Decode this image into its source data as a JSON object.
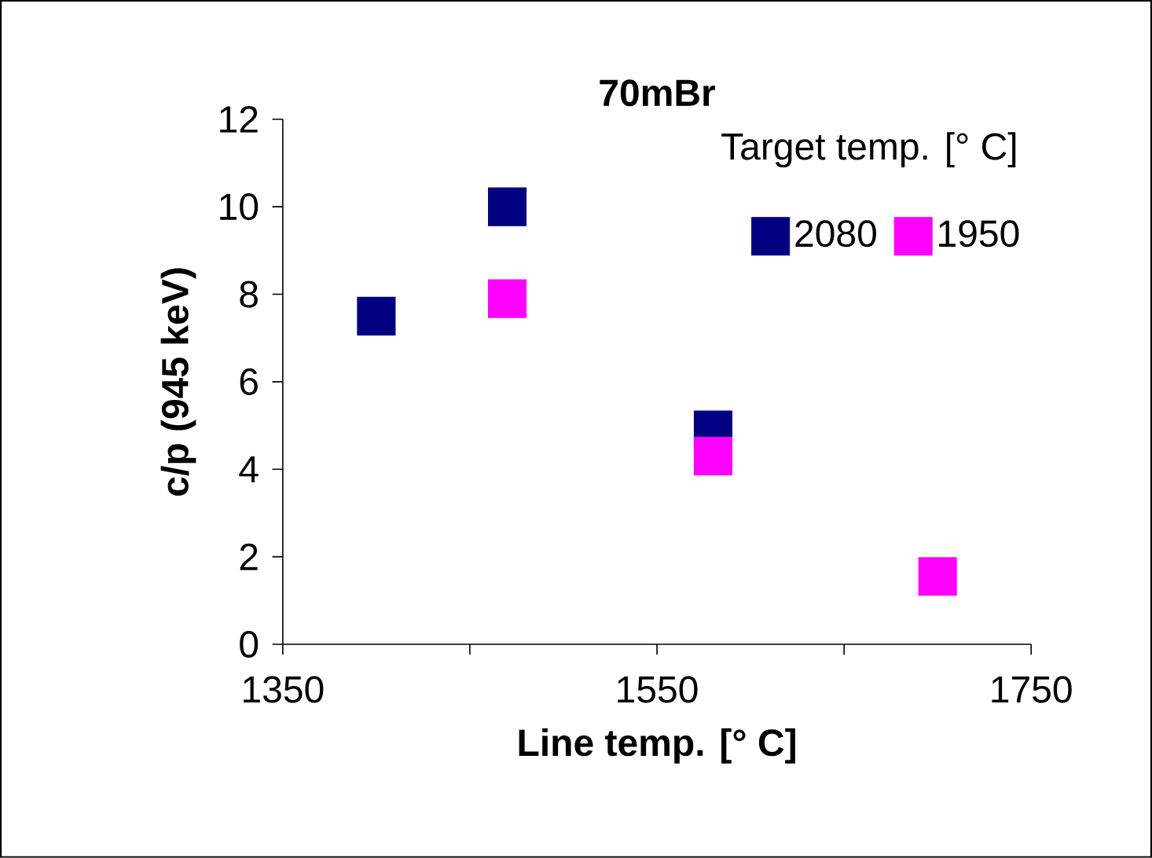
{
  "chart_data": {
    "type": "scatter",
    "title": "70mBr",
    "xlabel": "Line temp. [° C]",
    "ylabel": "c/p (945 keV)",
    "legend_title": "Target temp. [° C]",
    "legend": "top right",
    "marker": "square",
    "xlim": [
      1350,
      1750
    ],
    "xticks": [
      1350,
      {
        "value": 1450,
        "label": null
      },
      1550,
      {
        "value": 1650,
        "label": null
      },
      1750
    ],
    "ylim": [
      0,
      12
    ],
    "yticks": [
      0,
      2,
      4,
      6,
      8,
      10,
      12
    ],
    "series": [
      {
        "name": "2080",
        "color": "#000080",
        "x": [
          1400,
          1470,
          1580
        ],
        "values": [
          7.5,
          10.0,
          4.9
        ]
      },
      {
        "name": "1950",
        "color": "#ff00ff",
        "x": [
          1470,
          1580,
          1700
        ],
        "values": [
          7.9,
          4.3,
          1.55
        ]
      }
    ]
  }
}
